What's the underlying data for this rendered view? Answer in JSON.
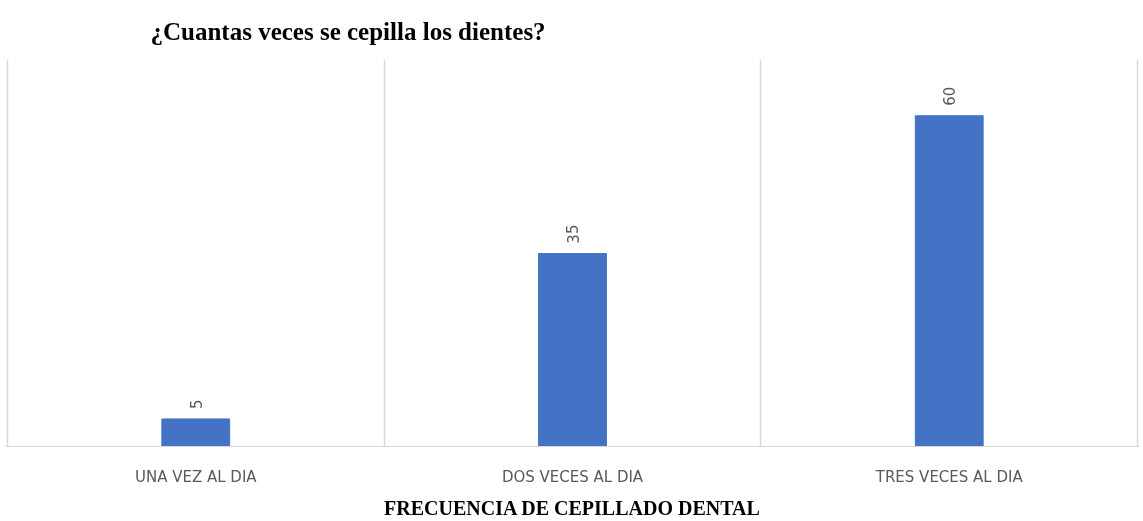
{
  "chart_data": {
    "type": "bar",
    "title": "¿Cuantas veces se cepilla los dientes?",
    "xlabel": "FRECUENCIA DE CEPILLADO DENTAL",
    "categories": [
      "UNA VEZ AL DIA",
      "DOS VECES AL DIA",
      "TRES VECES AL DIA"
    ],
    "values": [
      5,
      35,
      60
    ],
    "color": "#4472c4",
    "data_labels": true,
    "grid": "x"
  }
}
